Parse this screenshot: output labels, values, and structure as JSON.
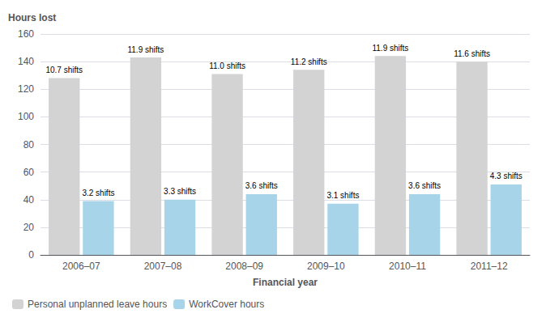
{
  "chart_data": {
    "type": "bar",
    "ylabel": "Hours lost",
    "xlabel": "Financial year",
    "categories": [
      "2006–07",
      "2007–08",
      "2008–09",
      "2009–10",
      "2010–11",
      "2011–12"
    ],
    "series": [
      {
        "name": "Personal unplanned leave hours",
        "color": "#d3d3d3",
        "values": [
          128,
          143,
          131,
          134,
          144,
          140
        ],
        "annotations": [
          "10.7 shifts",
          "11.9 shifts",
          "11.0 shifts",
          "11.2 shifts",
          "11.9 shifts",
          "11.6 shifts"
        ]
      },
      {
        "name": "WorkCover hours",
        "color": "#a8d4ea",
        "values": [
          39,
          40,
          44,
          37,
          44,
          51
        ],
        "annotations": [
          "3.2 shifts",
          "3.3 shifts",
          "3.6 shifts",
          "3.1 shifts",
          "3.6 shifts",
          "4.3 shifts"
        ]
      }
    ],
    "ylim": [
      0,
      160
    ],
    "yticks": [
      0,
      20,
      40,
      60,
      80,
      100,
      120,
      140,
      160
    ],
    "grid": true,
    "legend": "lower left"
  }
}
